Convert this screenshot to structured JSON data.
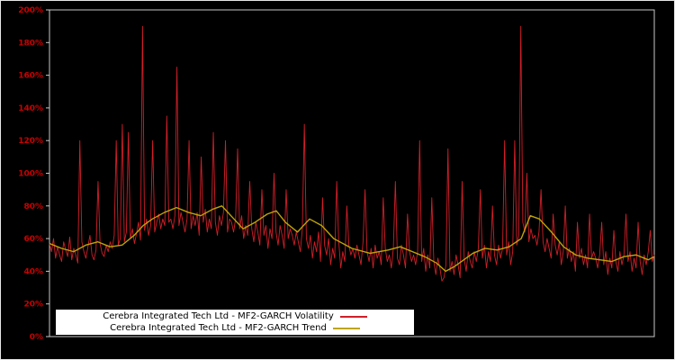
{
  "chart_data": {
    "type": "line",
    "title": "",
    "xlabel": "",
    "ylabel": "",
    "ylim": [
      0,
      200
    ],
    "y_ticks": [
      0,
      20,
      40,
      60,
      80,
      100,
      120,
      140,
      160,
      180,
      200
    ],
    "y_tick_labels": [
      "0%",
      "20%",
      "40%",
      "60%",
      "80%",
      "100%",
      "120%",
      "140%",
      "160%",
      "180%",
      "200%"
    ],
    "grid": false,
    "background": "#000000",
    "frame_color": "#c8c8c8",
    "outer_border_color": "#e8e8e8",
    "axis_label_color": "#cc0000",
    "legend_position": "bottom-left",
    "legend_bg": "#ffffff",
    "series": [
      {
        "name": "Cerebra Integrated Tech Ltd - MF2-GARCH Volatility",
        "color": "#d01f28",
        "x_spacing": "uniform",
        "values": [
          57,
          52,
          60,
          48,
          55,
          50,
          46,
          58,
          53,
          49,
          61,
          47,
          54,
          50,
          45,
          120,
          58,
          52,
          48,
          55,
          62,
          50,
          47,
          53,
          95,
          57,
          51,
          49,
          56,
          52,
          58,
          54,
          62,
          120,
          56,
          60,
          130,
          58,
          64,
          125,
          60,
          66,
          57,
          63,
          70,
          59,
          190,
          65,
          72,
          62,
          68,
          120,
          64,
          70,
          75,
          66,
          72,
          68,
          135,
          70,
          72,
          66,
          74,
          165,
          68,
          76,
          70,
          64,
          72,
          120,
          66,
          74,
          68,
          76,
          62,
          110,
          70,
          78,
          64,
          72,
          66,
          125,
          70,
          62,
          74,
          68,
          76,
          120,
          64,
          72,
          70,
          64,
          72,
          115,
          66,
          74,
          60,
          68,
          62,
          95,
          66,
          58,
          70,
          64,
          56,
          90,
          62,
          68,
          54,
          66,
          60,
          100,
          64,
          56,
          68,
          62,
          54,
          90,
          60,
          66,
          62,
          56,
          64,
          58,
          52,
          66,
          130,
          60,
          54,
          62,
          48,
          58,
          52,
          64,
          46,
          85,
          56,
          50,
          60,
          44,
          54,
          48,
          95,
          58,
          42,
          52,
          46,
          80,
          56,
          50,
          54,
          48,
          56,
          50,
          44,
          58,
          90,
          52,
          46,
          54,
          42,
          56,
          48,
          52,
          44,
          85,
          54,
          46,
          50,
          42,
          54,
          95,
          48,
          44,
          56,
          50,
          42,
          75,
          52,
          46,
          50,
          44,
          52,
          120,
          46,
          54,
          40,
          50,
          42,
          85,
          46,
          38,
          48,
          42,
          34,
          36,
          44,
          115,
          40,
          46,
          38,
          50,
          44,
          36,
          95,
          48,
          40,
          52,
          46,
          42,
          52,
          46,
          54,
          90,
          48,
          56,
          42,
          52,
          46,
          80,
          50,
          44,
          56,
          48,
          54,
          120,
          50,
          58,
          44,
          52,
          120,
          56,
          62,
          190,
          70,
          64,
          100,
          58,
          66,
          60,
          62,
          56,
          64,
          90,
          58,
          52,
          60,
          54,
          48,
          75,
          56,
          50,
          58,
          44,
          52,
          80,
          48,
          54,
          46,
          52,
          40,
          70,
          48,
          54,
          44,
          50,
          42,
          75,
          48,
          52,
          48,
          42,
          50,
          70,
          44,
          52,
          38,
          48,
          42,
          65,
          46,
          40,
          52,
          44,
          50,
          75,
          46,
          52,
          40,
          48,
          42,
          70,
          46,
          38,
          50,
          44,
          52,
          65,
          46,
          50
        ]
      },
      {
        "name": "Cerebra Integrated Tech Ltd - MF2-GARCH Trend",
        "color": "#bfa409",
        "x": [
          0,
          0.02,
          0.04,
          0.06,
          0.08,
          0.1,
          0.12,
          0.14,
          0.155,
          0.17,
          0.19,
          0.21,
          0.23,
          0.25,
          0.27,
          0.285,
          0.3,
          0.32,
          0.34,
          0.36,
          0.375,
          0.39,
          0.41,
          0.43,
          0.45,
          0.47,
          0.5,
          0.53,
          0.56,
          0.58,
          0.6,
          0.62,
          0.64,
          0.655,
          0.67,
          0.7,
          0.72,
          0.74,
          0.76,
          0.78,
          0.795,
          0.81,
          0.83,
          0.85,
          0.87,
          0.89,
          0.91,
          0.93,
          0.95,
          0.97,
          0.99,
          1.0
        ],
        "values": [
          57,
          54,
          52,
          56,
          58,
          55,
          56,
          62,
          68,
          72,
          76,
          79,
          76,
          74,
          78,
          80,
          74,
          66,
          70,
          75,
          77,
          70,
          64,
          72,
          68,
          60,
          54,
          51,
          53,
          55,
          52,
          49,
          45,
          40,
          43,
          51,
          54,
          53,
          55,
          60,
          74,
          72,
          64,
          55,
          50,
          48,
          47,
          46,
          49,
          50,
          47,
          49
        ]
      }
    ]
  }
}
